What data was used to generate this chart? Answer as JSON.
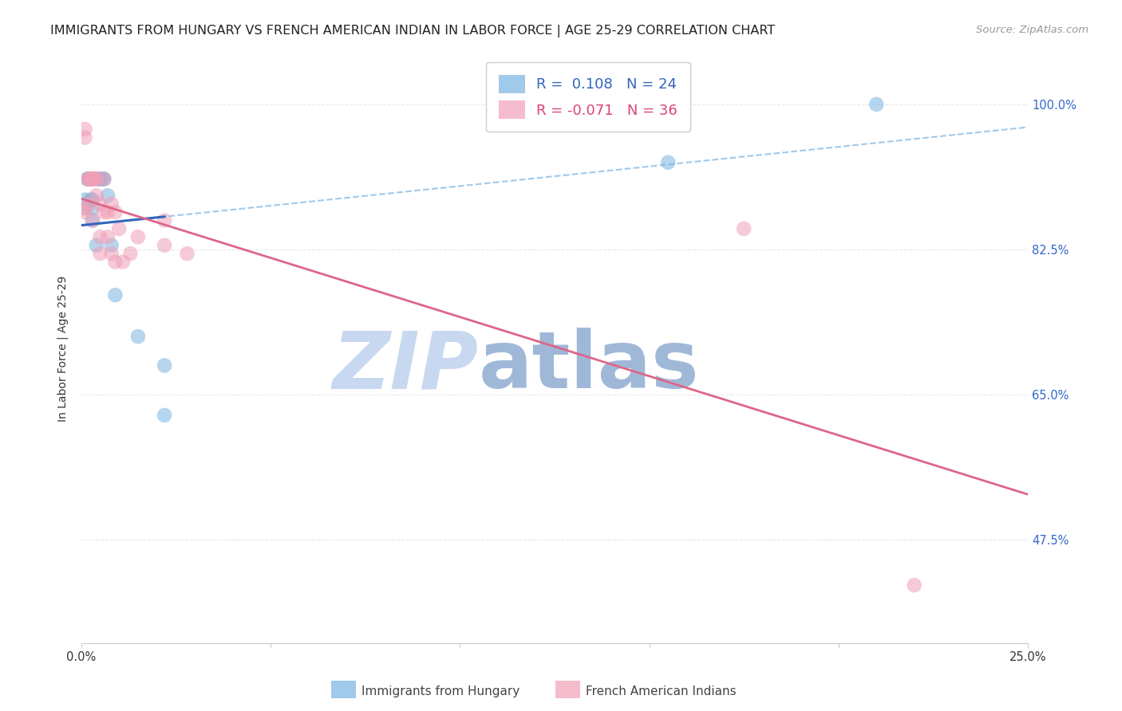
{
  "title": "IMMIGRANTS FROM HUNGARY VS FRENCH AMERICAN INDIAN IN LABOR FORCE | AGE 25-29 CORRELATION CHART",
  "source": "Source: ZipAtlas.com",
  "ylabel": "In Labor Force | Age 25-29",
  "y_tick_labels": [
    "100.0%",
    "82.5%",
    "65.0%",
    "47.5%"
  ],
  "y_tick_values": [
    1.0,
    0.825,
    0.65,
    0.475
  ],
  "r_blue": 0.108,
  "n_blue": 24,
  "r_pink": -0.071,
  "n_pink": 36,
  "legend_label_blue": "Immigrants from Hungary",
  "legend_label_pink": "French American Indians",
  "blue_scatter_x": [
    0.001,
    0.001,
    0.0015,
    0.002,
    0.002,
    0.002,
    0.0025,
    0.003,
    0.003,
    0.003,
    0.004,
    0.004,
    0.005,
    0.005,
    0.006,
    0.006,
    0.007,
    0.008,
    0.009,
    0.015,
    0.022,
    0.022,
    0.155,
    0.21
  ],
  "blue_scatter_y": [
    0.885,
    0.875,
    0.91,
    0.91,
    0.91,
    0.91,
    0.885,
    0.885,
    0.875,
    0.86,
    0.83,
    0.91,
    0.91,
    0.91,
    0.91,
    0.91,
    0.89,
    0.83,
    0.77,
    0.72,
    0.685,
    0.625,
    0.93,
    1.0
  ],
  "pink_scatter_x": [
    0.001,
    0.001,
    0.001,
    0.001,
    0.002,
    0.002,
    0.002,
    0.002,
    0.003,
    0.003,
    0.003,
    0.003,
    0.003,
    0.004,
    0.004,
    0.004,
    0.005,
    0.005,
    0.005,
    0.006,
    0.006,
    0.007,
    0.007,
    0.008,
    0.008,
    0.009,
    0.009,
    0.01,
    0.011,
    0.013,
    0.015,
    0.022,
    0.022,
    0.028,
    0.175,
    0.22
  ],
  "pink_scatter_y": [
    0.97,
    0.96,
    0.875,
    0.87,
    0.91,
    0.91,
    0.91,
    0.88,
    0.91,
    0.91,
    0.91,
    0.91,
    0.86,
    0.91,
    0.91,
    0.89,
    0.88,
    0.84,
    0.82,
    0.91,
    0.87,
    0.87,
    0.84,
    0.88,
    0.82,
    0.87,
    0.81,
    0.85,
    0.81,
    0.82,
    0.84,
    0.86,
    0.83,
    0.82,
    0.85,
    0.42
  ],
  "xlim": [
    0,
    0.25
  ],
  "ylim": [
    0.35,
    1.06
  ],
  "background_color": "#ffffff",
  "grid_color": "#e8e8e8",
  "blue_color": "#7ab3e0",
  "pink_color": "#f0a0b8",
  "blue_line_color": "#3366bb",
  "blue_dash_color": "#7ab3e0",
  "pink_line_color": "#dd6688",
  "watermark_zip": "ZIP",
  "watermark_atlas": "atlas",
  "watermark_color_zip": "#c8d8f0",
  "watermark_color_atlas": "#a0b8d8",
  "title_fontsize": 11.5,
  "axis_label_fontsize": 10,
  "tick_fontsize": 10.5,
  "legend_fontsize": 13,
  "source_fontsize": 9.5
}
